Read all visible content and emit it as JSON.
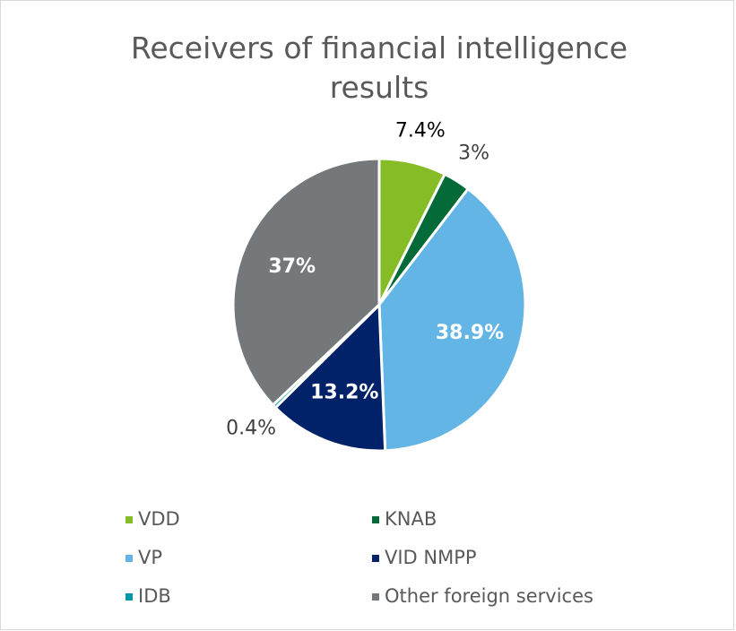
{
  "chart_data": {
    "type": "pie",
    "title": "Receivers of financial intelligence results",
    "categories": [
      "VDD",
      "KNAB",
      "VP",
      "VID NMPP",
      "IDB",
      "Other foreign services"
    ],
    "values": [
      7.4,
      3,
      38.9,
      13.2,
      0.4,
      37
    ],
    "value_labels": [
      "7.4%",
      "3%",
      "38.9%",
      "13.2%",
      "0.4%",
      "37%"
    ],
    "colors": [
      "#86bc25",
      "#046a38",
      "#62b5e5",
      "#012169",
      "#0097a9",
      "#75787b"
    ],
    "legend": "bottom"
  }
}
